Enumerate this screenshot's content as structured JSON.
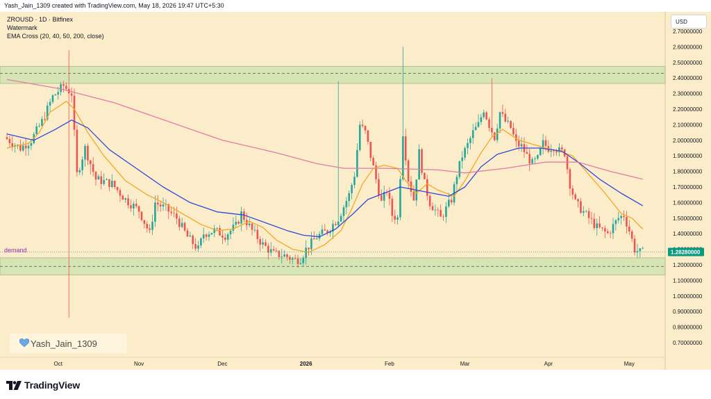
{
  "header": {
    "created_by": "Yash_Jain_1309 created with TradingView.com, May 18, 2026 19:47 UTC+5:30"
  },
  "legend": {
    "symbol_line": "ZROUSD · 1D · Bitfinex",
    "watermark_line": "Watermark",
    "indicator_line": "EMA Cross (20, 40, 50, 200, close)"
  },
  "currency_button": "USD",
  "watermark_text": "Yash_Jain_1309",
  "footer": {
    "brand": "TradingView"
  },
  "colors": {
    "background": "#fbedc9",
    "zone_fill": "#d6e5b3",
    "up_candle": "#26a69a",
    "down_candle": "#ef5350",
    "ema_orange": "#f5a623",
    "ema_blue": "#2f48d8",
    "ema_pink": "#e07ba7",
    "price_label": "#089981",
    "demand_label": "#9c27b0"
  },
  "chart_data": {
    "type": "candlestick",
    "symbol": "ZROUSD",
    "interval": "1D",
    "exchange": "Bitfinex",
    "y_axis": {
      "ylim": [
        0.65,
        2.75
      ],
      "ticks": [
        "2.70000000",
        "2.60000000",
        "2.50000000",
        "2.40000000",
        "2.30000000",
        "2.20000000",
        "2.10000000",
        "2.00000000",
        "1.90000000",
        "1.80000000",
        "1.70000000",
        "1.60000000",
        "1.50000000",
        "1.40000000",
        "1.30000000",
        "1.20000000",
        "1.10000000",
        "1.00000000",
        "0.90000000",
        "0.80000000",
        "0.70000000"
      ],
      "tick_values": [
        2.7,
        2.6,
        2.5,
        2.4,
        2.3,
        2.2,
        2.1,
        2.0,
        1.9,
        1.8,
        1.7,
        1.6,
        1.5,
        1.4,
        1.3,
        1.2,
        1.1,
        1.0,
        0.9,
        0.8,
        0.7
      ]
    },
    "x_axis": {
      "tick_labels": [
        "Oct",
        "Nov",
        "Dec",
        "2026",
        "Feb",
        "Mar",
        "Apr",
        "May"
      ],
      "tick_index": [
        19,
        49,
        80,
        111,
        142,
        170,
        201,
        231
      ],
      "bold": [
        "2026"
      ]
    },
    "last_price": {
      "value": 1.2828,
      "label": "1.28280000"
    },
    "zones": [
      {
        "name": "supply",
        "top": 2.475,
        "bottom": 2.365,
        "dashed_line": 2.43
      },
      {
        "name": "demand",
        "label": "demand",
        "top": 1.245,
        "bottom": 1.135,
        "dashed_line": 1.19
      }
    ],
    "ema": {
      "20": [
        [
          0,
          1.95
        ],
        [
          8,
          1.98
        ],
        [
          12,
          2.05
        ],
        [
          16,
          2.18
        ],
        [
          22,
          2.25
        ],
        [
          25,
          2.2
        ],
        [
          30,
          2.05
        ],
        [
          36,
          1.9
        ],
        [
          44,
          1.74
        ],
        [
          52,
          1.65
        ],
        [
          58,
          1.6
        ],
        [
          66,
          1.52
        ],
        [
          72,
          1.46
        ],
        [
          78,
          1.42
        ],
        [
          84,
          1.43
        ],
        [
          90,
          1.48
        ],
        [
          95,
          1.44
        ],
        [
          100,
          1.36
        ],
        [
          106,
          1.3
        ],
        [
          112,
          1.28
        ],
        [
          118,
          1.33
        ],
        [
          124,
          1.42
        ],
        [
          128,
          1.56
        ],
        [
          132,
          1.72
        ],
        [
          136,
          1.82
        ],
        [
          140,
          1.84
        ],
        [
          145,
          1.82
        ],
        [
          148,
          1.74
        ],
        [
          152,
          1.66
        ],
        [
          156,
          1.72
        ],
        [
          160,
          1.68
        ],
        [
          166,
          1.64
        ],
        [
          170,
          1.74
        ],
        [
          176,
          1.92
        ],
        [
          180,
          2.02
        ],
        [
          184,
          2.07
        ],
        [
          190,
          2.0
        ],
        [
          196,
          1.97
        ],
        [
          200,
          1.95
        ],
        [
          205,
          1.93
        ],
        [
          210,
          1.9
        ],
        [
          216,
          1.78
        ],
        [
          222,
          1.66
        ],
        [
          228,
          1.53
        ],
        [
          232,
          1.5
        ],
        [
          236,
          1.43
        ]
      ],
      "40": [
        [
          0,
          2.04
        ],
        [
          10,
          2.0
        ],
        [
          18,
          2.07
        ],
        [
          24,
          2.13
        ],
        [
          30,
          2.08
        ],
        [
          38,
          1.94
        ],
        [
          48,
          1.82
        ],
        [
          58,
          1.7
        ],
        [
          68,
          1.6
        ],
        [
          78,
          1.54
        ],
        [
          88,
          1.52
        ],
        [
          96,
          1.47
        ],
        [
          104,
          1.42
        ],
        [
          110,
          1.39
        ],
        [
          116,
          1.38
        ],
        [
          122,
          1.43
        ],
        [
          128,
          1.52
        ],
        [
          134,
          1.62
        ],
        [
          140,
          1.66
        ],
        [
          146,
          1.7
        ],
        [
          152,
          1.68
        ],
        [
          158,
          1.66
        ],
        [
          164,
          1.64
        ],
        [
          170,
          1.7
        ],
        [
          176,
          1.83
        ],
        [
          182,
          1.91
        ],
        [
          190,
          1.95
        ],
        [
          198,
          1.95
        ],
        [
          206,
          1.93
        ],
        [
          212,
          1.86
        ],
        [
          220,
          1.75
        ],
        [
          228,
          1.66
        ],
        [
          236,
          1.58
        ]
      ],
      "200": [
        [
          0,
          2.39
        ],
        [
          20,
          2.33
        ],
        [
          40,
          2.24
        ],
        [
          60,
          2.12
        ],
        [
          80,
          2.0
        ],
        [
          100,
          1.92
        ],
        [
          115,
          1.85
        ],
        [
          125,
          1.82
        ],
        [
          140,
          1.82
        ],
        [
          160,
          1.81
        ],
        [
          170,
          1.79
        ],
        [
          185,
          1.82
        ],
        [
          200,
          1.86
        ],
        [
          212,
          1.86
        ],
        [
          224,
          1.8
        ],
        [
          236,
          1.75
        ]
      ]
    }
  }
}
